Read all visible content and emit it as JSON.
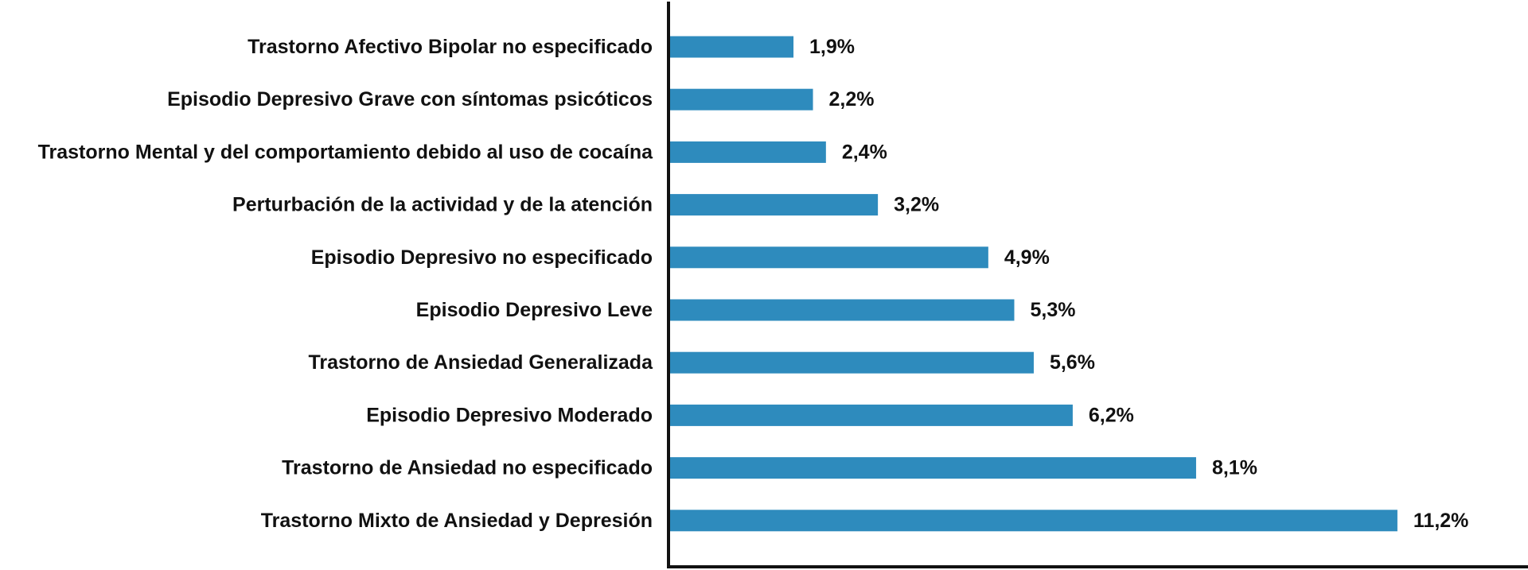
{
  "chart_data": {
    "type": "bar",
    "orientation": "horizontal",
    "categories": [
      "Trastorno Afectivo Bipolar no especificado",
      "Episodio Depresivo Grave con síntomas psicóticos",
      "Trastorno Mental y del comportamiento debido al uso de cocaína",
      "Perturbación de la actividad y de la atención",
      "Episodio Depresivo no especificado",
      "Episodio Depresivo Leve",
      "Trastorno de Ansiedad Generalizada",
      "Episodio Depresivo Moderado",
      "Trastorno de Ansiedad no especificado",
      "Trastorno Mixto de Ansiedad y Depresión"
    ],
    "values": [
      1.9,
      2.2,
      2.4,
      3.2,
      4.9,
      5.3,
      5.6,
      6.2,
      8.1,
      11.2
    ],
    "value_labels": [
      "1,9%",
      "2,2%",
      "2,4%",
      "3,2%",
      "4,9%",
      "5,3%",
      "5,6%",
      "6,2%",
      "8,1%",
      "11,2%"
    ],
    "title": "",
    "xlabel": "",
    "ylabel": "",
    "xlim": [
      0,
      12
    ],
    "grid": false,
    "legend": "none",
    "bar_color": "#2e8bbd",
    "axis_color": "#111111"
  }
}
